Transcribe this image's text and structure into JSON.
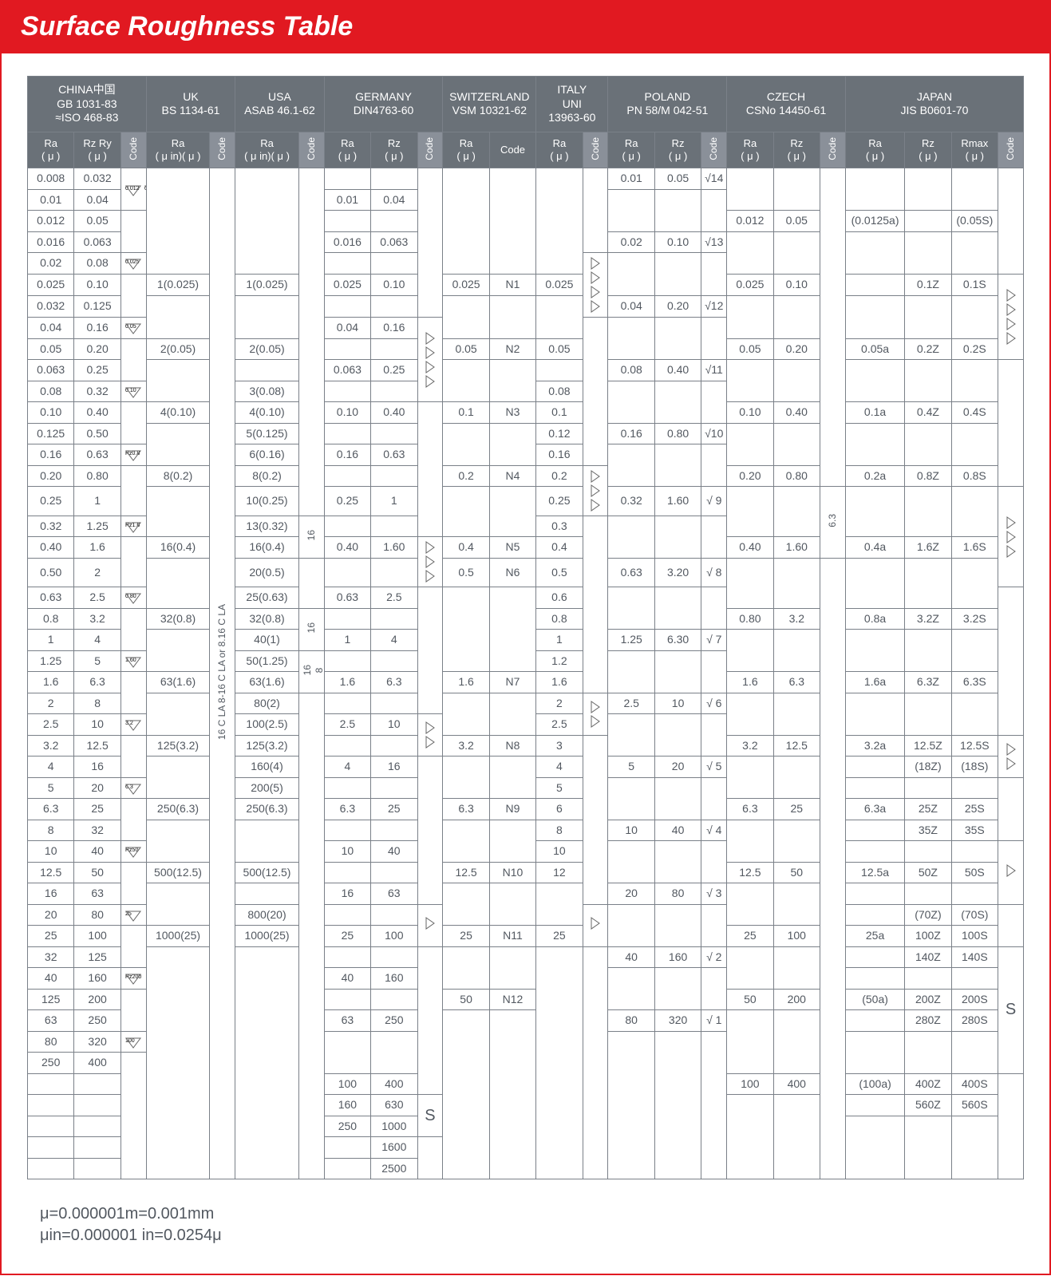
{
  "title": "Surface Roughness Table",
  "colors": {
    "accent": "#e11921",
    "header": "#6a7178",
    "border": "#7a8088",
    "text": "#525860"
  },
  "footnotes": [
    "μ=0.000001m=0.001mm",
    "μin=0.000001 in=0.0254μ"
  ],
  "countries": {
    "china": {
      "title": "CHINA中国\nGB 1031-83\n≈ISO 468-83",
      "cols": [
        "Ra\n( μ )",
        "Rz Ry\n( μ )",
        "Code"
      ]
    },
    "uk": {
      "title": "UK\nBS 1134-61",
      "cols": [
        "Ra\n( μ in)( μ )",
        "Code"
      ]
    },
    "usa": {
      "title": "USA\nASAB 46.1-62",
      "cols": [
        "Ra\n( μ in)( μ )",
        "Code"
      ]
    },
    "germany": {
      "title": "GERMANY\nDIN4763-60",
      "cols": [
        "Ra\n( μ )",
        "Rz\n( μ )",
        "Code"
      ]
    },
    "swiss": {
      "title": "SWITZERLAND\nVSM 10321-62",
      "cols": [
        "Ra\n( μ )",
        "Code"
      ]
    },
    "italy": {
      "title": "ITALY\nUNI\n13963-60",
      "cols": [
        "Ra\n( μ )",
        "Code"
      ]
    },
    "poland": {
      "title": "POLAND\nPN 58/M 042-51",
      "cols": [
        "Ra\n( μ )",
        "Rz\n( μ )",
        "Code"
      ]
    },
    "czech": {
      "title": "CZECH\nCSNo 14450-61",
      "cols": [
        "Ra\n( μ )",
        "Rz\n( μ )",
        "Code"
      ]
    },
    "japan": {
      "title": "JAPAN\nJIS B0601-70",
      "cols": [
        "Ra\n( μ )",
        "Rz\n( μ )",
        "Rmax\n( μ )",
        "Code"
      ]
    }
  },
  "china_rows": [
    [
      "0.008",
      "0.032"
    ],
    [
      "0.01",
      "0.04"
    ],
    [
      "0.012",
      "0.05"
    ],
    [
      "0.016",
      "0.063"
    ],
    [
      "0.02",
      "0.08"
    ],
    [
      "0.025",
      "0.10"
    ],
    [
      "0.032",
      "0.125"
    ],
    [
      "0.04",
      "0.16"
    ],
    [
      "0.05",
      "0.20"
    ],
    [
      "0.063",
      "0.25"
    ],
    [
      "0.08",
      "0.32"
    ],
    [
      "0.10",
      "0.40"
    ],
    [
      "0.125",
      "0.50"
    ],
    [
      "0.16",
      "0.63"
    ],
    [
      "0.20",
      "0.80"
    ],
    [
      "0.25",
      "1"
    ],
    [
      "0.32",
      "1.25"
    ],
    [
      "0.40",
      "1.6"
    ],
    [
      "0.50",
      "2"
    ],
    [
      "0.63",
      "2.5"
    ],
    [
      "0.8",
      "3.2"
    ],
    [
      "1",
      "4"
    ],
    [
      "1.25",
      "5"
    ],
    [
      "1.6",
      "6.3"
    ],
    [
      "2",
      "8"
    ],
    [
      "2.5",
      "10"
    ],
    [
      "3.2",
      "12.5"
    ],
    [
      "4",
      "16"
    ],
    [
      "5",
      "20"
    ],
    [
      "6.3",
      "25"
    ],
    [
      "8",
      "32"
    ],
    [
      "10",
      "40"
    ],
    [
      "12.5",
      "50"
    ],
    [
      "16",
      "63"
    ],
    [
      "20",
      "80"
    ],
    [
      "25",
      "100"
    ],
    [
      "32",
      "125"
    ],
    [
      "40",
      "160"
    ],
    [
      "125",
      "200"
    ],
    [
      "63",
      "250"
    ],
    [
      "80",
      "320"
    ],
    [
      "250",
      "400"
    ]
  ],
  "china_code": [
    {
      "at": 0,
      "span": 2,
      "t": "0.012\n0.006"
    },
    {
      "at": 4,
      "span": 1,
      "t": "0.025"
    },
    {
      "at": 7,
      "span": 1,
      "t": "0.05"
    },
    {
      "at": 10,
      "span": 1,
      "t": "0.10"
    },
    {
      "at": 13,
      "span": 1,
      "t": "Rz0.8"
    },
    {
      "at": 16,
      "span": 1,
      "t": "Rz1.6"
    },
    {
      "at": 19,
      "span": 1,
      "t": "0.80"
    },
    {
      "at": 22,
      "span": 1,
      "t": "1.60"
    },
    {
      "at": 25,
      "span": 1,
      "t": "3.2"
    },
    {
      "at": 28,
      "span": 1,
      "t": "6.3"
    },
    {
      "at": 31,
      "span": 1,
      "t": "Rz50"
    },
    {
      "at": 34,
      "span": 1,
      "t": "25"
    },
    {
      "at": 37,
      "span": 1,
      "t": "Rz200"
    },
    {
      "at": 40,
      "span": 1,
      "t": "100"
    }
  ],
  "uk": [
    {
      "at": 5,
      "t": "1(0.025)"
    },
    {
      "at": 8,
      "t": "2(0.05)"
    },
    {
      "at": 11,
      "t": "4(0.10)"
    },
    {
      "at": 14,
      "t": "8(0.2)"
    },
    {
      "at": 17,
      "t": "16(0.4)"
    },
    {
      "at": 20,
      "t": "32(0.8)"
    },
    {
      "at": 23,
      "t": "63(1.6)"
    },
    {
      "at": 26,
      "t": "125(3.2)"
    },
    {
      "at": 29,
      "t": "250(6.3)"
    },
    {
      "at": 32,
      "t": "500(12.5)"
    },
    {
      "at": 35,
      "t": "1000(25)"
    }
  ],
  "uk_code": "16 C LA 8-16 C LA or 8.16 C LA",
  "usa": [
    {
      "at": 5,
      "t": "1(0.025)"
    },
    {
      "at": 8,
      "t": "2(0.05)"
    },
    {
      "at": 10,
      "t": "3(0.08)"
    },
    {
      "at": 11,
      "t": "4(0.10)"
    },
    {
      "at": 12,
      "t": "5(0.125)"
    },
    {
      "at": 13,
      "t": "6(0.16)"
    },
    {
      "at": 14,
      "t": "8(0.2)"
    },
    {
      "at": 15,
      "t": "10(0.25)"
    },
    {
      "at": 16,
      "t": "13(0.32)"
    },
    {
      "at": 17,
      "t": "16(0.4)"
    },
    {
      "at": 18,
      "t": "20(0.5)"
    },
    {
      "at": 19,
      "t": "25(0.63)"
    },
    {
      "at": 20,
      "t": "32(0.8)"
    },
    {
      "at": 21,
      "t": "40(1)"
    },
    {
      "at": 22,
      "t": "50(1.25)"
    },
    {
      "at": 23,
      "t": "63(1.6)"
    },
    {
      "at": 24,
      "t": "80(2)"
    },
    {
      "at": 25,
      "t": "100(2.5)"
    },
    {
      "at": 26,
      "t": "125(3.2)"
    },
    {
      "at": 27,
      "t": "160(4)"
    },
    {
      "at": 28,
      "t": "200(5)"
    },
    {
      "at": 29,
      "t": "250(6.3)"
    },
    {
      "at": 32,
      "t": "500(12.5)"
    },
    {
      "at": 34,
      "t": "800(20)"
    },
    {
      "at": 35,
      "t": "1000(25)"
    }
  ],
  "usa_code": [
    {
      "at": 16,
      "span": 2,
      "t": "16"
    },
    {
      "at": 20,
      "span": 2,
      "t": "16"
    },
    {
      "at": 22,
      "span": 2,
      "t": "16\n8"
    }
  ],
  "germany": [
    {
      "at": 1,
      "ra": "0.01",
      "rz": "0.04"
    },
    {
      "at": 3,
      "ra": "0.016",
      "rz": "0.063"
    },
    {
      "at": 5,
      "ra": "0.025",
      "rz": "0.10"
    },
    {
      "at": 7,
      "ra": "0.04",
      "rz": "0.16"
    },
    {
      "at": 9,
      "ra": "0.063",
      "rz": "0.25"
    },
    {
      "at": 11,
      "ra": "0.10",
      "rz": "0.40"
    },
    {
      "at": 13,
      "ra": "0.16",
      "rz": "0.63"
    },
    {
      "at": 15,
      "ra": "0.25",
      "rz": "1"
    },
    {
      "at": 17,
      "ra": "0.40",
      "rz": "1.60"
    },
    {
      "at": 19,
      "ra": "0.63",
      "rz": "2.5"
    },
    {
      "at": 21,
      "ra": "1",
      "rz": "4"
    },
    {
      "at": 23,
      "ra": "1.6",
      "rz": "6.3"
    },
    {
      "at": 25,
      "ra": "2.5",
      "rz": "10"
    },
    {
      "at": 27,
      "ra": "4",
      "rz": "16"
    },
    {
      "at": 29,
      "ra": "6.3",
      "rz": "25"
    },
    {
      "at": 31,
      "ra": "10",
      "rz": "40"
    },
    {
      "at": 33,
      "ra": "16",
      "rz": "63"
    },
    {
      "at": 35,
      "ra": "25",
      "rz": "100"
    },
    {
      "at": 37,
      "ra": "40",
      "rz": "160"
    },
    {
      "at": 39,
      "ra": "63",
      "rz": "250"
    },
    {
      "at": 42,
      "ra": "100",
      "rz": "400"
    },
    {
      "at": 43,
      "ra": "160",
      "rz": "630"
    },
    {
      "at": 44,
      "ra": "250",
      "rz": "1000"
    },
    {
      "at": 45,
      "ra": "",
      "rz": "1600"
    },
    {
      "at": 46,
      "ra": "",
      "rz": "2500"
    }
  ],
  "germany_code": [
    {
      "at": 7,
      "span": 4,
      "t": "▷▷▷▷"
    },
    {
      "at": 17,
      "span": 2,
      "t": "▷▷▷"
    },
    {
      "at": 25,
      "span": 2,
      "t": "▷▷"
    },
    {
      "at": 34,
      "span": 2,
      "t": "▷"
    },
    {
      "at": 43,
      "span": 2,
      "t": "S"
    }
  ],
  "swiss": [
    {
      "at": 5,
      "ra": "0.025",
      "cd": "N1"
    },
    {
      "at": 8,
      "ra": "0.05",
      "cd": "N2"
    },
    {
      "at": 11,
      "ra": "0.1",
      "cd": "N3"
    },
    {
      "at": 14,
      "ra": "0.2",
      "cd": "N4"
    },
    {
      "at": 17,
      "ra": "0.4",
      "cd": "N5"
    },
    {
      "at": 18,
      "ra": "0.5",
      "cd": "N6"
    },
    {
      "at": 23,
      "ra": "1.6",
      "cd": "N7"
    },
    {
      "at": 26,
      "ra": "3.2",
      "cd": "N8"
    },
    {
      "at": 29,
      "ra": "6.3",
      "cd": "N9"
    },
    {
      "at": 32,
      "ra": "12.5",
      "cd": "N10"
    },
    {
      "at": 35,
      "ra": "25",
      "cd": "N11"
    },
    {
      "at": 38,
      "ra": "50",
      "cd": "N12"
    }
  ],
  "italy": [
    {
      "at": 5,
      "t": "0.025"
    },
    {
      "at": 8,
      "t": "0.05"
    },
    {
      "at": 10,
      "t": "0.08"
    },
    {
      "at": 11,
      "t": "0.1"
    },
    {
      "at": 12,
      "t": "0.12"
    },
    {
      "at": 13,
      "t": "0.16"
    },
    {
      "at": 14,
      "t": "0.2"
    },
    {
      "at": 15,
      "t": "0.25"
    },
    {
      "at": 16,
      "t": "0.3"
    },
    {
      "at": 17,
      "t": "0.4"
    },
    {
      "at": 18,
      "t": "0.5"
    },
    {
      "at": 19,
      "t": "0.6"
    },
    {
      "at": 20,
      "t": "0.8"
    },
    {
      "at": 21,
      "t": "1"
    },
    {
      "at": 22,
      "t": "1.2"
    },
    {
      "at": 23,
      "t": "1.6"
    },
    {
      "at": 24,
      "t": "2"
    },
    {
      "at": 25,
      "t": "2.5"
    },
    {
      "at": 26,
      "t": "3"
    },
    {
      "at": 27,
      "t": "4"
    },
    {
      "at": 28,
      "t": "5"
    },
    {
      "at": 29,
      "t": "6"
    },
    {
      "at": 30,
      "t": "8"
    },
    {
      "at": 31,
      "t": "10"
    },
    {
      "at": 32,
      "t": "12"
    },
    {
      "at": 35,
      "t": "25"
    }
  ],
  "italy_code": [
    {
      "at": 4,
      "span": 3,
      "t": "▷▷▷▷"
    },
    {
      "at": 14,
      "span": 2,
      "t": "▷▷▷"
    },
    {
      "at": 24,
      "span": 2,
      "t": "▷▷"
    },
    {
      "at": 34,
      "span": 2,
      "t": "▷"
    }
  ],
  "poland": [
    {
      "at": 0,
      "ra": "0.01",
      "rz": "0.05",
      "cd": "√14"
    },
    {
      "at": 3,
      "ra": "0.02",
      "rz": "0.10",
      "cd": "√13"
    },
    {
      "at": 6,
      "ra": "0.04",
      "rz": "0.20",
      "cd": "√12"
    },
    {
      "at": 9,
      "ra": "0.08",
      "rz": "0.40",
      "cd": "√11"
    },
    {
      "at": 12,
      "ra": "0.16",
      "rz": "0.80",
      "cd": "√10"
    },
    {
      "at": 15,
      "ra": "0.32",
      "rz": "1.60",
      "cd": "√ 9"
    },
    {
      "at": 18,
      "ra": "0.63",
      "rz": "3.20",
      "cd": "√ 8"
    },
    {
      "at": 21,
      "ra": "1.25",
      "rz": "6.30",
      "cd": "√ 7"
    },
    {
      "at": 24,
      "ra": "2.5",
      "rz": "10",
      "cd": "√ 6"
    },
    {
      "at": 27,
      "ra": "5",
      "rz": "20",
      "cd": "√ 5"
    },
    {
      "at": 30,
      "ra": "10",
      "rz": "40",
      "cd": "√ 4"
    },
    {
      "at": 33,
      "ra": "20",
      "rz": "80",
      "cd": "√ 3"
    },
    {
      "at": 36,
      "ra": "40",
      "rz": "160",
      "cd": "√ 2"
    },
    {
      "at": 39,
      "ra": "80",
      "rz": "320",
      "cd": "√ 1"
    }
  ],
  "czech": [
    {
      "at": 2,
      "ra": "0.012",
      "rz": "0.05"
    },
    {
      "at": 5,
      "ra": "0.025",
      "rz": "0.10"
    },
    {
      "at": 8,
      "ra": "0.05",
      "rz": "0.20"
    },
    {
      "at": 11,
      "ra": "0.10",
      "rz": "0.40"
    },
    {
      "at": 14,
      "ra": "0.20",
      "rz": "0.80"
    },
    {
      "at": 17,
      "ra": "0.40",
      "rz": "1.60"
    },
    {
      "at": 20,
      "ra": "0.80",
      "rz": "3.2"
    },
    {
      "at": 23,
      "ra": "1.6",
      "rz": "6.3"
    },
    {
      "at": 26,
      "ra": "3.2",
      "rz": "12.5"
    },
    {
      "at": 29,
      "ra": "6.3",
      "rz": "25"
    },
    {
      "at": 32,
      "ra": "12.5",
      "rz": "50"
    },
    {
      "at": 35,
      "ra": "25",
      "rz": "100"
    },
    {
      "at": 38,
      "ra": "50",
      "rz": "200"
    },
    {
      "at": 42,
      "ra": "100",
      "rz": "400"
    }
  ],
  "czech_code": [
    {
      "at": 15,
      "span": 3,
      "t": "6.3"
    }
  ],
  "japan": [
    {
      "at": 2,
      "ra": "(0.0125a)",
      "rz": "",
      "rm": "(0.05S)"
    },
    {
      "at": 5,
      "ra": "",
      "rz": "0.1Z",
      "rm": "0.1S"
    },
    {
      "at": 8,
      "ra": "0.05a",
      "rz": "0.2Z",
      "rm": "0.2S"
    },
    {
      "at": 11,
      "ra": "0.1a",
      "rz": "0.4Z",
      "rm": "0.4S"
    },
    {
      "at": 14,
      "ra": "0.2a",
      "rz": "0.8Z",
      "rm": "0.8S"
    },
    {
      "at": 17,
      "ra": "0.4a",
      "rz": "1.6Z",
      "rm": "1.6S"
    },
    {
      "at": 20,
      "ra": "0.8a",
      "rz": "3.2Z",
      "rm": "3.2S"
    },
    {
      "at": 23,
      "ra": "1.6a",
      "rz": "6.3Z",
      "rm": "6.3S"
    },
    {
      "at": 26,
      "ra": "3.2a",
      "rz": "12.5Z",
      "rm": "12.5S"
    },
    {
      "at": 27,
      "ra": "",
      "rz": "(18Z)",
      "rm": "(18S)"
    },
    {
      "at": 29,
      "ra": "6.3a",
      "rz": "25Z",
      "rm": "25S"
    },
    {
      "at": 30,
      "ra": "",
      "rz": "35Z",
      "rm": "35S"
    },
    {
      "at": 32,
      "ra": "12.5a",
      "rz": "50Z",
      "rm": "50S"
    },
    {
      "at": 34,
      "ra": "",
      "rz": "(70Z)",
      "rm": "(70S)"
    },
    {
      "at": 35,
      "ra": "25a",
      "rz": "100Z",
      "rm": "100S"
    },
    {
      "at": 36,
      "ra": "",
      "rz": "140Z",
      "rm": "140S"
    },
    {
      "at": 38,
      "ra": "(50a)",
      "rz": "200Z",
      "rm": "200S"
    },
    {
      "at": 39,
      "ra": "",
      "rz": "280Z",
      "rm": "280S"
    },
    {
      "at": 42,
      "ra": "(100a)",
      "rz": "400Z",
      "rm": "400S"
    },
    {
      "at": 43,
      "ra": "",
      "rz": "560Z",
      "rm": "560S"
    }
  ],
  "japan_code": [
    {
      "at": 5,
      "span": 4,
      "t": "▷▷▷▷"
    },
    {
      "at": 15,
      "span": 4,
      "t": "▷▷▷"
    },
    {
      "at": 26,
      "span": 2,
      "t": "▷▷"
    },
    {
      "at": 31,
      "span": 3,
      "t": "▷"
    },
    {
      "at": 36,
      "span": 6,
      "t": "S"
    }
  ],
  "total_rows": 47
}
